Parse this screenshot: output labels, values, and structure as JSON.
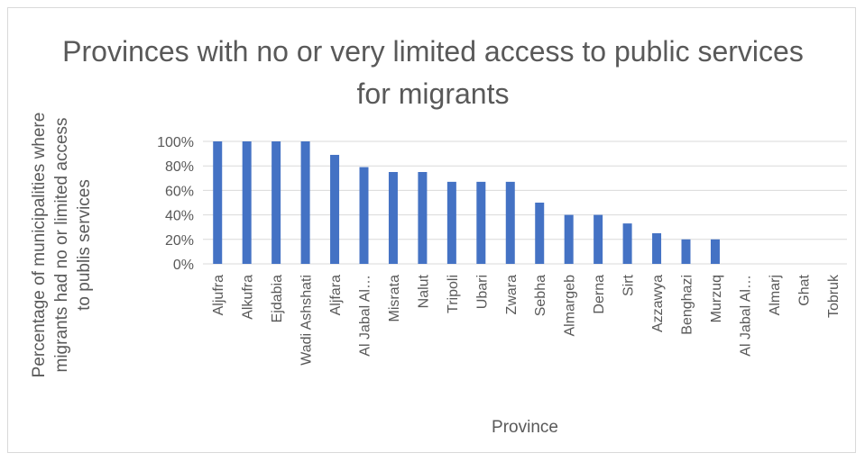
{
  "chart_data": {
    "type": "bar",
    "title": "Provinces with no or very limited access to public services for migrants",
    "xlabel": "Province",
    "ylabel_lines": [
      "Percentage of municipalities where",
      "migrants had no or limited access",
      "to publis services"
    ],
    "ylim": [
      0,
      100
    ],
    "y_tick_labels": [
      "0%",
      "20%",
      "40%",
      "60%",
      "80%",
      "100%"
    ],
    "categories": [
      "Aljufra",
      "Alkufra",
      "Ejdabia",
      "Wadi Ashshati",
      "Aljfara",
      "Al Jabal Al…",
      "Misrata",
      "Nalut",
      "Tripoli",
      "Ubari",
      "Zwara",
      "Sebha",
      "Almargeb",
      "Derna",
      "Sirt",
      "Azzawya",
      "Benghazi",
      "Murzuq",
      "Al Jabal Al…",
      "Almarj",
      "Ghat",
      "Tobruk"
    ],
    "values": [
      100,
      100,
      100,
      100,
      89,
      79,
      75,
      75,
      67,
      67,
      67,
      50,
      40,
      40,
      33,
      25,
      20,
      20,
      0,
      0,
      0,
      0
    ],
    "grid": true,
    "legend": "none",
    "bar_color": "#4472c4"
  }
}
